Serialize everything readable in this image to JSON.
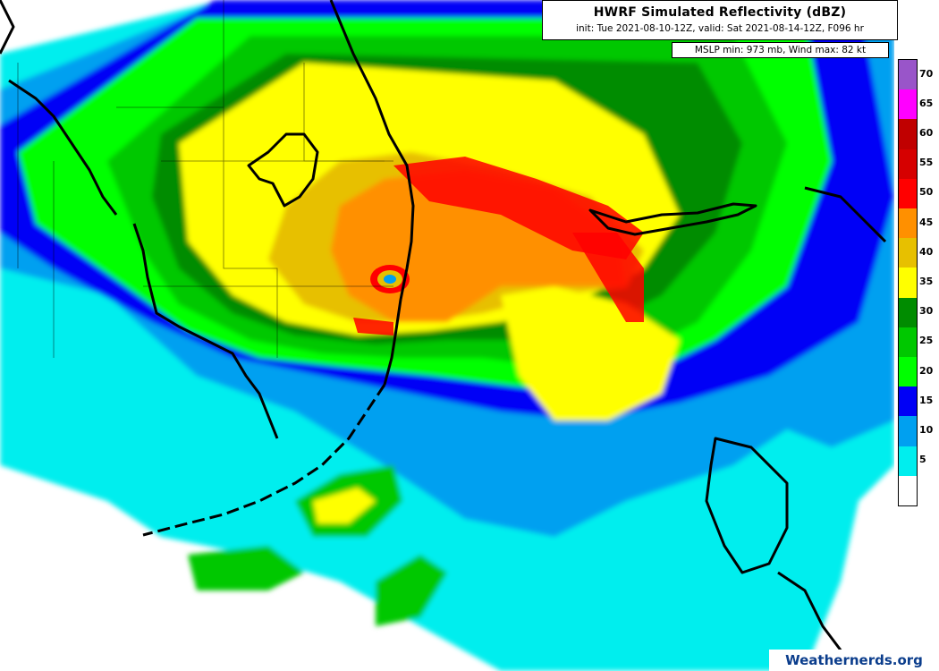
{
  "header": {
    "title": "HWRF Simulated Reflectivity (dBZ)",
    "subtitle": "init: Tue 2021-08-10-12Z, valid: Sat 2021-08-14-12Z, F096 hr",
    "stats": "MSLP min: 973 mb, Wind max: 82 kt"
  },
  "colorbar": {
    "levels": [
      {
        "label": "",
        "color": "#ffffff"
      },
      {
        "label": "5",
        "color": "#00eeee"
      },
      {
        "label": "10",
        "color": "#00a0f0"
      },
      {
        "label": "15",
        "color": "#0000f6"
      },
      {
        "label": "20",
        "color": "#00ff00"
      },
      {
        "label": "25",
        "color": "#00c800"
      },
      {
        "label": "30",
        "color": "#008c00"
      },
      {
        "label": "35",
        "color": "#ffff00"
      },
      {
        "label": "40",
        "color": "#e7c000"
      },
      {
        "label": "45",
        "color": "#ff9000"
      },
      {
        "label": "50",
        "color": "#ff0000"
      },
      {
        "label": "55",
        "color": "#d60000"
      },
      {
        "label": "60",
        "color": "#c00000"
      },
      {
        "label": "65",
        "color": "#ff00ff"
      },
      {
        "label": "70",
        "color": "#9955c9"
      }
    ]
  },
  "credit": "Weathernerds.org"
}
